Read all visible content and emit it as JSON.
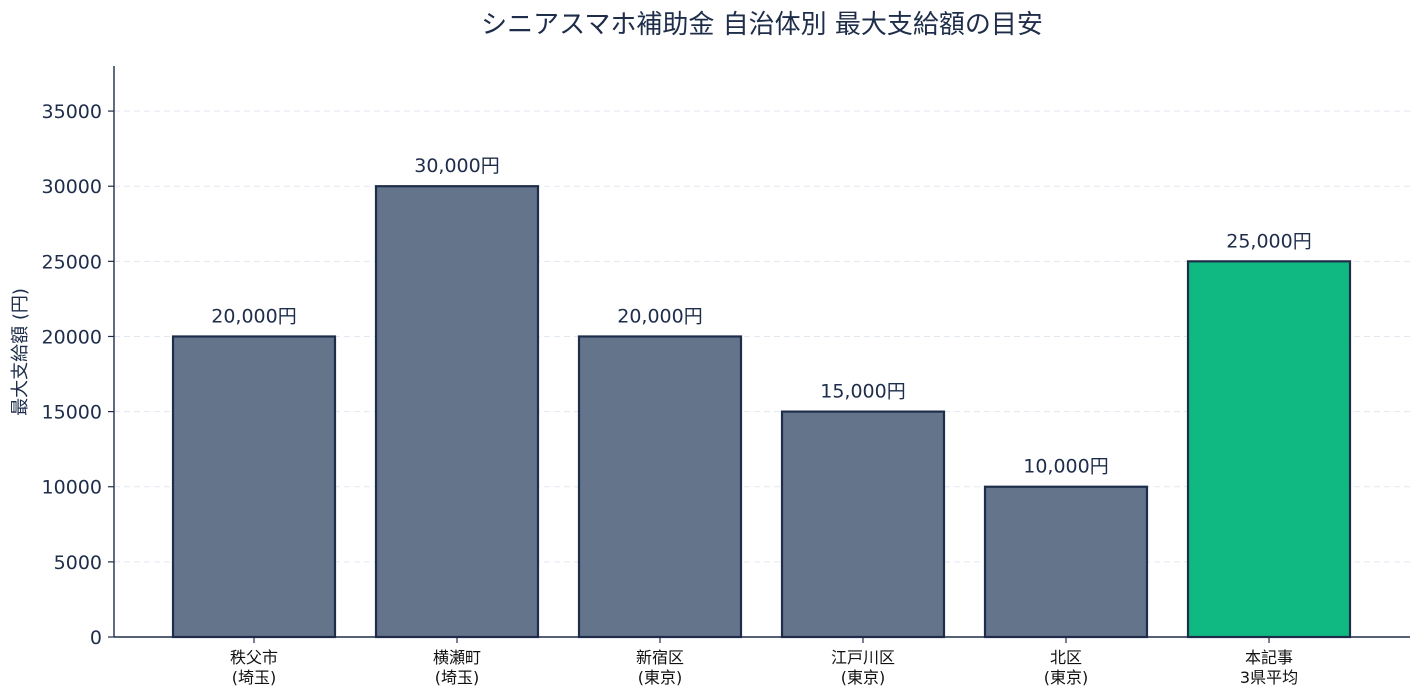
{
  "chart_data": {
    "type": "bar",
    "title": "シニアスマホ補助金 自治体別 最大支給額の目安",
    "xlabel": "",
    "ylabel": "最大支給額 (円)",
    "ylim": [
      0,
      38000
    ],
    "yticks": [
      0,
      5000,
      10000,
      15000,
      20000,
      25000,
      30000,
      35000
    ],
    "grid": true,
    "legend": "none",
    "categories": [
      [
        "秩父市",
        "(埼玉)"
      ],
      [
        "横瀬町",
        "(埼玉)"
      ],
      [
        "新宿区",
        "(東京)"
      ],
      [
        "江戸川区",
        "(東京)"
      ],
      [
        "北区",
        "(東京)"
      ],
      [
        "本記事",
        "3県平均"
      ]
    ],
    "values": [
      20000,
      30000,
      20000,
      15000,
      10000,
      25000
    ],
    "data_labels": [
      "20,000円",
      "30,000円",
      "20,000円",
      "15,000円",
      "10,000円",
      "25,000円"
    ],
    "colors": {
      "bar": "#64748b",
      "highlight_bar": "#10b981",
      "bar_edge": "#1e2d4a",
      "grid": "#e2e8f0",
      "axis": "#1e2d4a",
      "text": "#1e2d4a"
    },
    "highlight_index": 5
  }
}
